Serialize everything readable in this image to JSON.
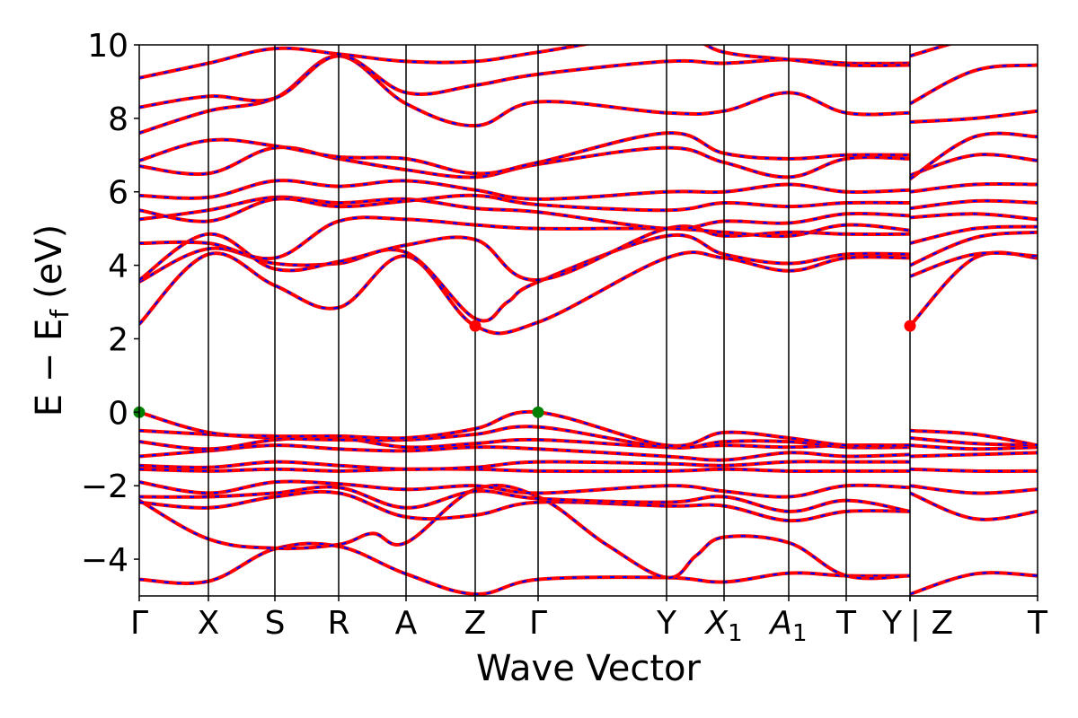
{
  "chart_data": {
    "type": "line",
    "title": "",
    "xlabel": "Wave Vector",
    "ylabel": "E − E",
    "ylabel_subscript": "f",
    "ylabel_unit": "(eV)",
    "ylim": [
      -5,
      10
    ],
    "yticks": [
      -4,
      -2,
      0,
      2,
      4,
      6,
      8,
      10
    ],
    "ytick_labels": [
      "−4",
      "−2",
      "0",
      "2",
      "4",
      "6",
      "8",
      "10"
    ],
    "kpoints": [
      {
        "label": "Γ",
        "x": 0.0
      },
      {
        "label": "X",
        "x": 0.077
      },
      {
        "label": "S",
        "x": 0.151
      },
      {
        "label": "R",
        "x": 0.222
      },
      {
        "label": "A",
        "x": 0.297
      },
      {
        "label": "Z",
        "x": 0.374
      },
      {
        "label": "Γ",
        "x": 0.444
      },
      {
        "label": "Y",
        "x": 0.587
      },
      {
        "label": "X",
        "sub": "1",
        "italic": true,
        "x": 0.651
      },
      {
        "label": "A",
        "sub": "1",
        "italic": true,
        "x": 0.723
      },
      {
        "label": "T",
        "x": 0.787
      },
      {
        "label": "Y",
        "x": 0.858
      },
      {
        "label": "Z",
        "x": 0.858,
        "prefix": "| "
      },
      {
        "label": "T",
        "x": 1.0
      }
    ],
    "grid": false,
    "legend": "none",
    "series_style": {
      "color_primary": "#ff0000",
      "color_overlay": "#0000ff",
      "style": "red solid with blue dashed overlay"
    },
    "markers": [
      {
        "kind": "VBM",
        "color": "#008000",
        "points": [
          {
            "x": 0.0,
            "y": 0.0
          },
          {
            "x": 0.444,
            "y": 0.0
          }
        ]
      },
      {
        "kind": "CBM",
        "color": "#ff0000",
        "points": [
          {
            "x": 0.374,
            "y": 2.35
          },
          {
            "x": 0.858,
            "y": 2.35
          }
        ]
      }
    ],
    "bands": [
      {
        "x": [
          0,
          0.077,
          0.151,
          0.222,
          0.297,
          0.374,
          0.444,
          0.587,
          0.651,
          0.723,
          0.787,
          0.858
        ],
        "y": [
          -4.55,
          -4.6,
          -3.72,
          -3.65,
          -4.4,
          -4.95,
          -4.55,
          -4.5,
          -4.62,
          -4.38,
          -4.45,
          -4.45
        ]
      },
      {
        "x": [
          0.858,
          0.93,
          1.0
        ],
        "y": [
          -4.95,
          -4.4,
          -4.45
        ]
      },
      {
        "x": [
          0,
          0.077,
          0.151,
          0.222,
          0.26,
          0.297,
          0.374,
          0.444,
          0.52,
          0.587,
          0.62,
          0.651,
          0.723,
          0.787,
          0.858
        ],
        "y": [
          -2.4,
          -3.45,
          -3.7,
          -3.6,
          -3.3,
          -3.55,
          -2.1,
          -2.3,
          -3.6,
          -4.5,
          -3.9,
          -3.4,
          -3.55,
          -4.45,
          -4.45
        ]
      },
      {
        "x": [
          0,
          0.077,
          0.151,
          0.222,
          0.297,
          0.374,
          0.444,
          0.587,
          0.651,
          0.723,
          0.787,
          0.858
        ],
        "y": [
          -2.45,
          -2.6,
          -2.3,
          -2.2,
          -2.85,
          -2.8,
          -2.45,
          -2.55,
          -2.55,
          -2.95,
          -2.7,
          -2.7
        ]
      },
      {
        "x": [
          0.858,
          0.93,
          1.0
        ],
        "y": [
          -2.2,
          -2.9,
          -2.7
        ]
      },
      {
        "x": [
          0,
          0.077,
          0.151,
          0.222,
          0.297,
          0.374,
          0.444,
          0.587,
          0.651,
          0.723,
          0.787,
          0.858
        ],
        "y": [
          -2.3,
          -2.3,
          -2.2,
          -2.05,
          -2.6,
          -2.15,
          -2.35,
          -2.45,
          -2.3,
          -2.7,
          -2.4,
          -2.7
        ]
      },
      {
        "x": [
          0,
          0.077,
          0.151,
          0.222,
          0.297,
          0.374,
          0.444,
          0.587,
          0.651,
          0.723,
          0.787,
          0.858
        ],
        "y": [
          -1.9,
          -2.2,
          -1.9,
          -1.95,
          -2.1,
          -2.0,
          -2.2,
          -2.0,
          -2.15,
          -2.3,
          -2.0,
          -2.05
        ]
      },
      {
        "x": [
          0.858,
          0.93,
          1.0
        ],
        "y": [
          -2.0,
          -2.2,
          -2.1
        ]
      },
      {
        "x": [
          0,
          0.077,
          0.151,
          0.222,
          0.297,
          0.374,
          0.444,
          0.587,
          0.651,
          0.723,
          0.787,
          0.858
        ],
        "y": [
          -1.55,
          -1.6,
          -1.55,
          -1.6,
          -1.55,
          -1.55,
          -1.6,
          -1.6,
          -1.55,
          -1.6,
          -1.6,
          -1.6
        ]
      },
      {
        "x": [
          0.858,
          0.93,
          1.0
        ],
        "y": [
          -1.55,
          -1.6,
          -1.6
        ]
      },
      {
        "x": [
          0,
          0.077,
          0.151,
          0.222,
          0.297,
          0.374,
          0.444,
          0.587,
          0.651,
          0.723,
          0.787,
          0.858
        ],
        "y": [
          -1.45,
          -1.5,
          -1.35,
          -1.45,
          -1.55,
          -1.5,
          -1.35,
          -1.4,
          -1.45,
          -1.35,
          -1.35,
          -1.35
        ]
      },
      {
        "x": [
          0,
          0.077,
          0.151,
          0.222,
          0.297,
          0.374,
          0.444,
          0.587,
          0.651,
          0.723,
          0.787,
          0.858
        ],
        "y": [
          -1.2,
          -1.05,
          -0.9,
          -1.0,
          -1.05,
          -0.95,
          -1.0,
          -1.2,
          -1.3,
          -1.1,
          -1.2,
          -1.15
        ]
      },
      {
        "x": [
          0.858,
          0.93,
          1.0
        ],
        "y": [
          -1.2,
          -1.15,
          -1.1
        ]
      },
      {
        "x": [
          0,
          0.077,
          0.151,
          0.222,
          0.297,
          0.374,
          0.444,
          0.587,
          0.651,
          0.723,
          0.787,
          0.858
        ],
        "y": [
          -0.8,
          -1.0,
          -0.75,
          -0.7,
          -0.95,
          -0.85,
          -0.75,
          -0.95,
          -0.9,
          -0.95,
          -0.9,
          -0.9
        ]
      },
      {
        "x": [
          0.858,
          0.93,
          1.0
        ],
        "y": [
          -0.9,
          -1.0,
          -0.95
        ]
      },
      {
        "x": [
          0,
          0.077,
          0.151,
          0.222,
          0.297,
          0.374,
          0.444,
          0.587,
          0.651,
          0.723,
          0.787,
          0.858
        ],
        "y": [
          -0.5,
          -0.6,
          -0.7,
          -0.75,
          -0.75,
          -0.6,
          -0.4,
          -0.95,
          -0.8,
          -0.8,
          -0.95,
          -0.95
        ]
      },
      {
        "x": [
          0.858,
          0.93,
          1.0
        ],
        "y": [
          -0.7,
          -0.85,
          -0.9
        ]
      },
      {
        "x": [
          0,
          0.077,
          0.151,
          0.222,
          0.297,
          0.374,
          0.444,
          0.587,
          0.651,
          0.723,
          0.787,
          0.858
        ],
        "y": [
          0.0,
          -0.55,
          -0.65,
          -0.65,
          -0.7,
          -0.45,
          0.0,
          -0.9,
          -0.55,
          -0.7,
          -0.9,
          -0.9
        ]
      },
      {
        "x": [
          0.858,
          0.93,
          1.0
        ],
        "y": [
          -0.5,
          -0.6,
          -0.9
        ]
      },
      {
        "x": [
          0,
          0.077,
          0.151,
          0.222,
          0.297,
          0.374,
          0.444,
          0.587,
          0.651,
          0.723,
          0.787,
          0.858
        ],
        "y": [
          2.4,
          4.3,
          3.45,
          2.85,
          4.25,
          2.35,
          2.45,
          4.2,
          4.2,
          3.85,
          4.2,
          4.2
        ]
      },
      {
        "x": [
          0.858,
          0.93,
          1.0
        ],
        "y": [
          2.35,
          4.2,
          4.2
        ]
      },
      {
        "x": [
          0,
          0.077,
          0.151,
          0.222,
          0.297,
          0.374,
          0.41,
          0.444,
          0.587,
          0.651,
          0.723,
          0.787,
          0.858
        ],
        "y": [
          3.55,
          4.45,
          4.05,
          4.05,
          4.35,
          2.55,
          3.0,
          3.55,
          4.8,
          4.3,
          4.05,
          4.3,
          4.3
        ]
      },
      {
        "x": [
          0.858,
          0.93,
          1.0
        ],
        "y": [
          3.7,
          4.3,
          4.25
        ]
      },
      {
        "x": [
          0,
          0.077,
          0.151,
          0.222,
          0.297,
          0.374,
          0.444,
          0.587,
          0.651,
          0.723,
          0.787,
          0.858
        ],
        "y": [
          3.6,
          4.85,
          3.9,
          4.1,
          4.55,
          4.7,
          3.6,
          5.0,
          4.8,
          4.9,
          4.85,
          4.85
        ]
      },
      {
        "x": [
          0.858,
          0.93,
          1.0
        ],
        "y": [
          4.0,
          4.75,
          4.9
        ]
      },
      {
        "x": [
          0,
          0.077,
          0.151,
          0.222,
          0.297,
          0.374,
          0.444,
          0.587,
          0.651,
          0.723,
          0.787,
          0.858
        ],
        "y": [
          4.6,
          4.6,
          4.2,
          5.2,
          5.25,
          5.1,
          5.0,
          5.0,
          4.9,
          4.8,
          5.1,
          4.95
        ]
      },
      {
        "x": [
          0.858,
          0.93,
          1.0
        ],
        "y": [
          4.6,
          5.0,
          5.05
        ]
      },
      {
        "x": [
          0,
          0.077,
          0.151,
          0.222,
          0.297,
          0.374,
          0.444,
          0.587,
          0.651,
          0.723,
          0.787,
          0.858
        ],
        "y": [
          5.25,
          5.5,
          5.85,
          5.7,
          5.8,
          5.55,
          5.45,
          5.0,
          5.2,
          5.15,
          5.4,
          5.35
        ]
      },
      {
        "x": [
          0.858,
          0.93,
          1.0
        ],
        "y": [
          5.3,
          5.4,
          5.25
        ]
      },
      {
        "x": [
          0,
          0.077,
          0.151,
          0.222,
          0.297,
          0.374,
          0.444,
          0.587,
          0.651,
          0.723,
          0.787,
          0.858
        ],
        "y": [
          5.5,
          5.2,
          5.8,
          5.6,
          5.75,
          5.9,
          5.65,
          5.5,
          5.7,
          5.6,
          5.7,
          5.7
        ]
      },
      {
        "x": [
          0.858,
          0.93,
          1.0
        ],
        "y": [
          5.55,
          5.75,
          5.7
        ]
      },
      {
        "x": [
          0,
          0.077,
          0.151,
          0.222,
          0.297,
          0.374,
          0.444,
          0.587,
          0.651,
          0.723,
          0.787,
          0.858
        ],
        "y": [
          5.9,
          5.85,
          6.3,
          6.15,
          6.3,
          6.05,
          5.8,
          6.0,
          6.0,
          6.2,
          6.0,
          6.05
        ]
      },
      {
        "x": [
          0.858,
          0.93,
          1.0
        ],
        "y": [
          6.0,
          6.2,
          6.2
        ]
      },
      {
        "x": [
          0,
          0.077,
          0.151,
          0.222,
          0.297,
          0.374,
          0.444,
          0.587,
          0.651,
          0.723,
          0.787,
          0.858
        ],
        "y": [
          6.7,
          6.5,
          7.2,
          6.9,
          6.6,
          6.4,
          6.75,
          7.2,
          6.8,
          6.4,
          6.9,
          6.9
        ]
      },
      {
        "x": [
          0.858,
          0.93,
          1.0
        ],
        "y": [
          6.45,
          7.0,
          6.85
        ]
      },
      {
        "x": [
          0,
          0.077,
          0.151,
          0.222,
          0.297,
          0.374,
          0.444,
          0.587,
          0.651,
          0.723,
          0.787,
          0.858
        ],
        "y": [
          6.85,
          7.4,
          7.25,
          6.95,
          6.9,
          6.5,
          6.8,
          7.6,
          7.05,
          6.9,
          7.0,
          7.0
        ]
      },
      {
        "x": [
          0.858,
          0.93,
          1.0
        ],
        "y": [
          6.35,
          7.5,
          7.5
        ]
      },
      {
        "x": [
          0,
          0.077,
          0.151,
          0.222,
          0.297,
          0.374,
          0.444,
          0.587,
          0.651,
          0.723,
          0.787,
          0.858
        ],
        "y": [
          7.6,
          8.2,
          8.55,
          9.7,
          8.4,
          7.8,
          8.45,
          8.15,
          8.2,
          8.7,
          8.15,
          8.15
        ]
      },
      {
        "x": [
          0.858,
          0.93,
          1.0
        ],
        "y": [
          7.9,
          8.0,
          8.2
        ]
      },
      {
        "x": [
          0,
          0.077,
          0.151,
          0.222,
          0.297,
          0.374,
          0.444,
          0.587,
          0.651,
          0.723,
          0.787,
          0.858
        ],
        "y": [
          8.3,
          8.6,
          8.55,
          9.7,
          8.7,
          8.9,
          9.2,
          9.55,
          9.5,
          9.6,
          9.5,
          9.5
        ]
      },
      {
        "x": [
          0.858,
          0.93,
          1.0
        ],
        "y": [
          8.4,
          9.3,
          9.45
        ]
      },
      {
        "x": [
          0,
          0.077,
          0.151,
          0.222,
          0.297,
          0.374,
          0.444,
          0.587,
          0.651,
          0.723,
          0.787,
          0.858
        ],
        "y": [
          9.1,
          9.5,
          9.9,
          9.75,
          9.55,
          9.55,
          9.8,
          10.3,
          9.8,
          9.6,
          9.45,
          9.45
        ]
      },
      {
        "x": [
          0.858,
          0.93,
          1.0
        ],
        "y": [
          9.7,
          10.2,
          10.5
        ]
      }
    ]
  }
}
